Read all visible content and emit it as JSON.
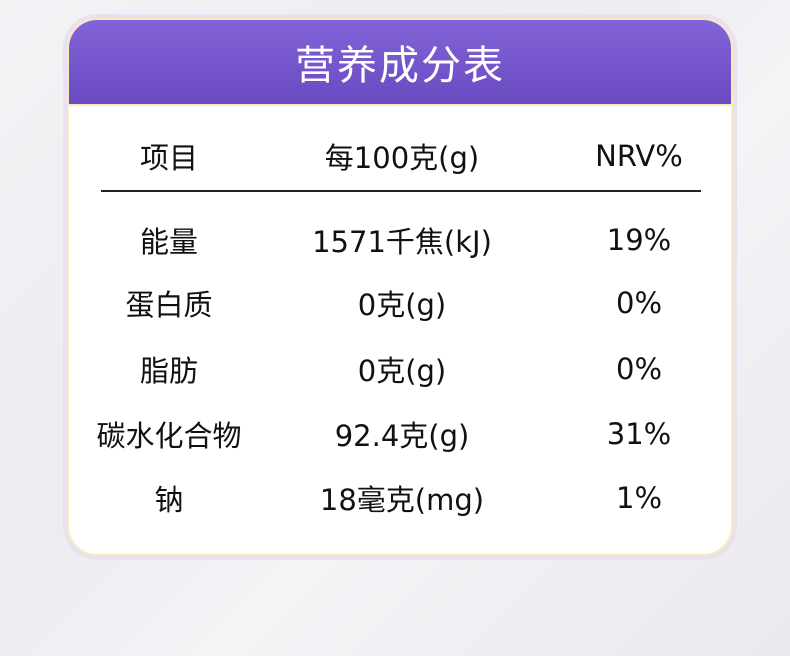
{
  "title": "营养成分表",
  "columns": [
    "项目",
    "每100克(g)",
    "NRV%"
  ],
  "rows": [
    [
      "能量",
      "1571千焦(kJ)",
      "19%"
    ],
    [
      "蛋白质",
      "0克(g)",
      "0%"
    ],
    [
      "脂肪",
      "0克(g)",
      "0%"
    ],
    [
      "碳水化合物",
      "92.4克(g)",
      "31%"
    ],
    [
      "钠",
      "18毫克(mg)",
      "1%"
    ]
  ],
  "colors": {
    "header": "#7456c8",
    "border": "#fbe9b8"
  }
}
